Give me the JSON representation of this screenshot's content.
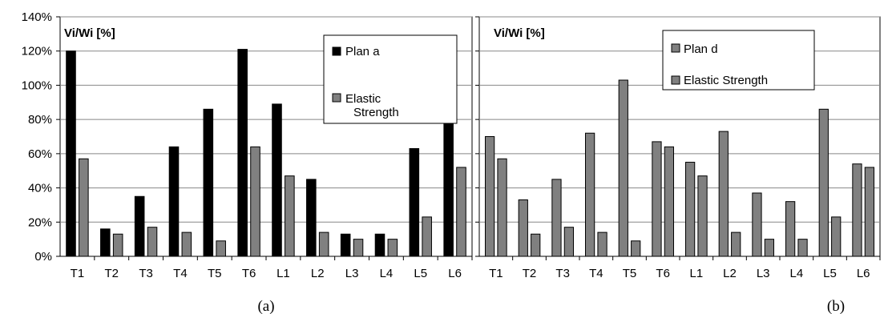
{
  "colors": {
    "plan_a": "#000000",
    "plan_d": "#808080",
    "elastic": "#808080",
    "grid": "#888888"
  },
  "chart_data": [
    {
      "type": "bar",
      "categories": [
        "T1",
        "T2",
        "T3",
        "T4",
        "T5",
        "T6",
        "L1",
        "L2",
        "L3",
        "L4",
        "L5",
        "L6"
      ],
      "ylabel": "Vi/Wi [%]",
      "ylim": [
        0,
        140
      ],
      "yticks": [
        "0%",
        "20%",
        "40%",
        "60%",
        "80%",
        "100%",
        "120%",
        "140%"
      ],
      "grid": true,
      "legend_position": "top-right",
      "caption": "(a)",
      "series": [
        {
          "name": "Plan a",
          "color": "#000000",
          "values": [
            120,
            16,
            35,
            64,
            86,
            121,
            89,
            45,
            13,
            13,
            63,
            93
          ]
        },
        {
          "name": "Elastic Strength",
          "color": "#808080",
          "values": [
            57,
            13,
            17,
            14,
            9,
            64,
            47,
            14,
            10,
            10,
            23,
            52
          ]
        }
      ]
    },
    {
      "type": "bar",
      "categories": [
        "T1",
        "T2",
        "T3",
        "T4",
        "T5",
        "T6",
        "L1",
        "L2",
        "L3",
        "L4",
        "L5",
        "L6"
      ],
      "ylabel": "Vi/Wi [%]",
      "ylim": [
        0,
        140
      ],
      "grid": true,
      "legend_position": "top-right",
      "caption": "(b)",
      "series": [
        {
          "name": "Plan d",
          "color": "#808080",
          "values": [
            70,
            33,
            45,
            72,
            103,
            67,
            55,
            73,
            37,
            32,
            86,
            54
          ]
        },
        {
          "name": "Elastic Strength",
          "color": "#808080",
          "values": [
            57,
            13,
            17,
            14,
            9,
            64,
            47,
            14,
            10,
            10,
            23,
            52
          ]
        }
      ]
    }
  ]
}
